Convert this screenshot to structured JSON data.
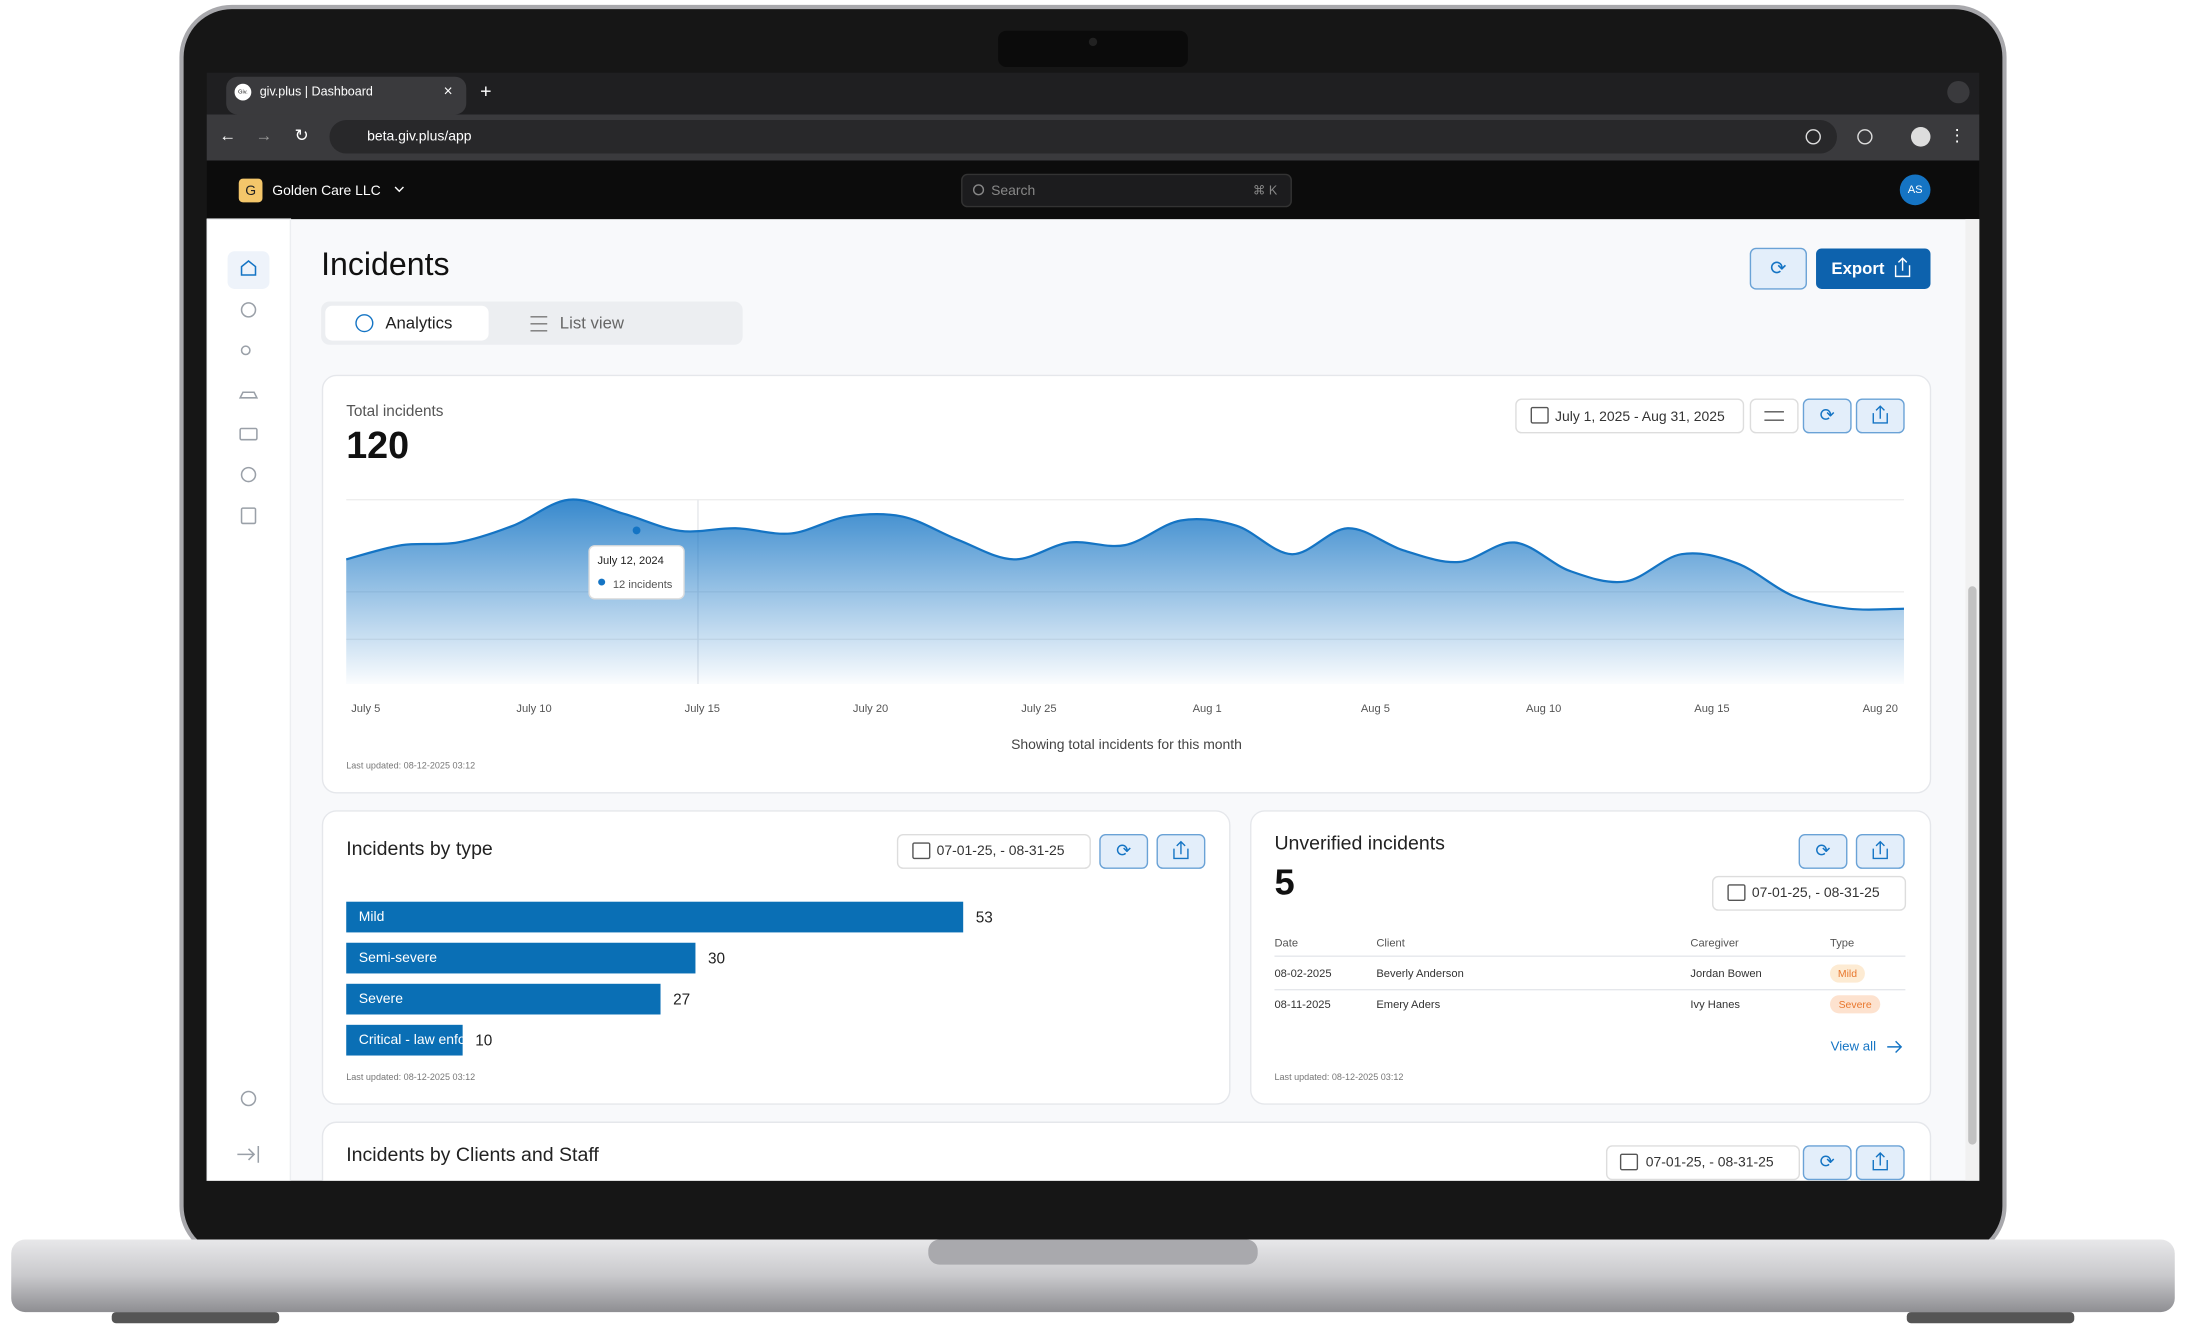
{
  "browser": {
    "tab_icon": "Giv.",
    "tab_title": "giv.plus | Dashboard",
    "url": "beta.giv.plus/app"
  },
  "header": {
    "org_initial": "G",
    "org_name": "Golden Care LLC",
    "search_placeholder": "Search",
    "search_shortcut": "⌘ K",
    "avatar": "AS"
  },
  "page": {
    "title": "Incidents",
    "tabs": [
      "Analytics",
      "List view"
    ],
    "export": "Export"
  },
  "total_chart": {
    "type": "area",
    "label": "Total incidents",
    "total": 120,
    "date_range": "July 1, 2025 - Aug 31, 2025",
    "color": "#1474c4",
    "values": [
      9.6,
      10.7,
      10.9,
      12.2,
      14.2,
      13.1,
      11.8,
      12.0,
      11.6,
      12.9,
      12.9,
      11.1,
      9.6,
      10.9,
      10.7,
      12.6,
      12.2,
      10.0,
      12.0,
      10.3,
      9.4,
      10.9,
      8.7,
      7.9,
      10.0,
      9.3,
      6.8,
      5.8,
      5.8
    ],
    "xticks": [
      "July 5",
      "July 10",
      "July 15",
      "July 20",
      "July 25",
      "Aug 1",
      "Aug 5",
      "Aug 10",
      "Aug 15",
      "Aug 20"
    ],
    "tooltip": {
      "date": "July 12, 2024",
      "text": "12 incidents"
    },
    "caption": "Showing total incidents for this month",
    "updated": "Last updated: 08-12-2025 03:12"
  },
  "type_chart": {
    "type": "hbar",
    "title": "Incidents by type",
    "date_range": "07-01-25,  - 08-31-25",
    "color": "#0a6fb5",
    "categories": [
      "Mild",
      "Semi-severe",
      "Severe",
      "Critical - law enforcement"
    ],
    "values": [
      53,
      30,
      27,
      10
    ],
    "updated": "Last updated: 08-12-2025 03:12"
  },
  "unverified": {
    "title": "Unverified incidents",
    "count": 5,
    "date_range": "07-01-25,  - 08-31-25",
    "columns": [
      "Date",
      "Client",
      "Caregiver",
      "Type"
    ],
    "rows": [
      [
        "08-02-2025",
        "Beverly Anderson",
        "Jordan Bowen",
        "Mild"
      ],
      [
        "08-11-2025",
        "Emery Aders",
        "Ivy Hanes",
        "Severe"
      ]
    ],
    "view_all": "View all",
    "updated": "Last updated: 08-12-2025 03:12"
  },
  "clients_section": {
    "title": "Incidents by Clients and Staff",
    "date_range": "07-01-25,  - 08-31-25"
  }
}
